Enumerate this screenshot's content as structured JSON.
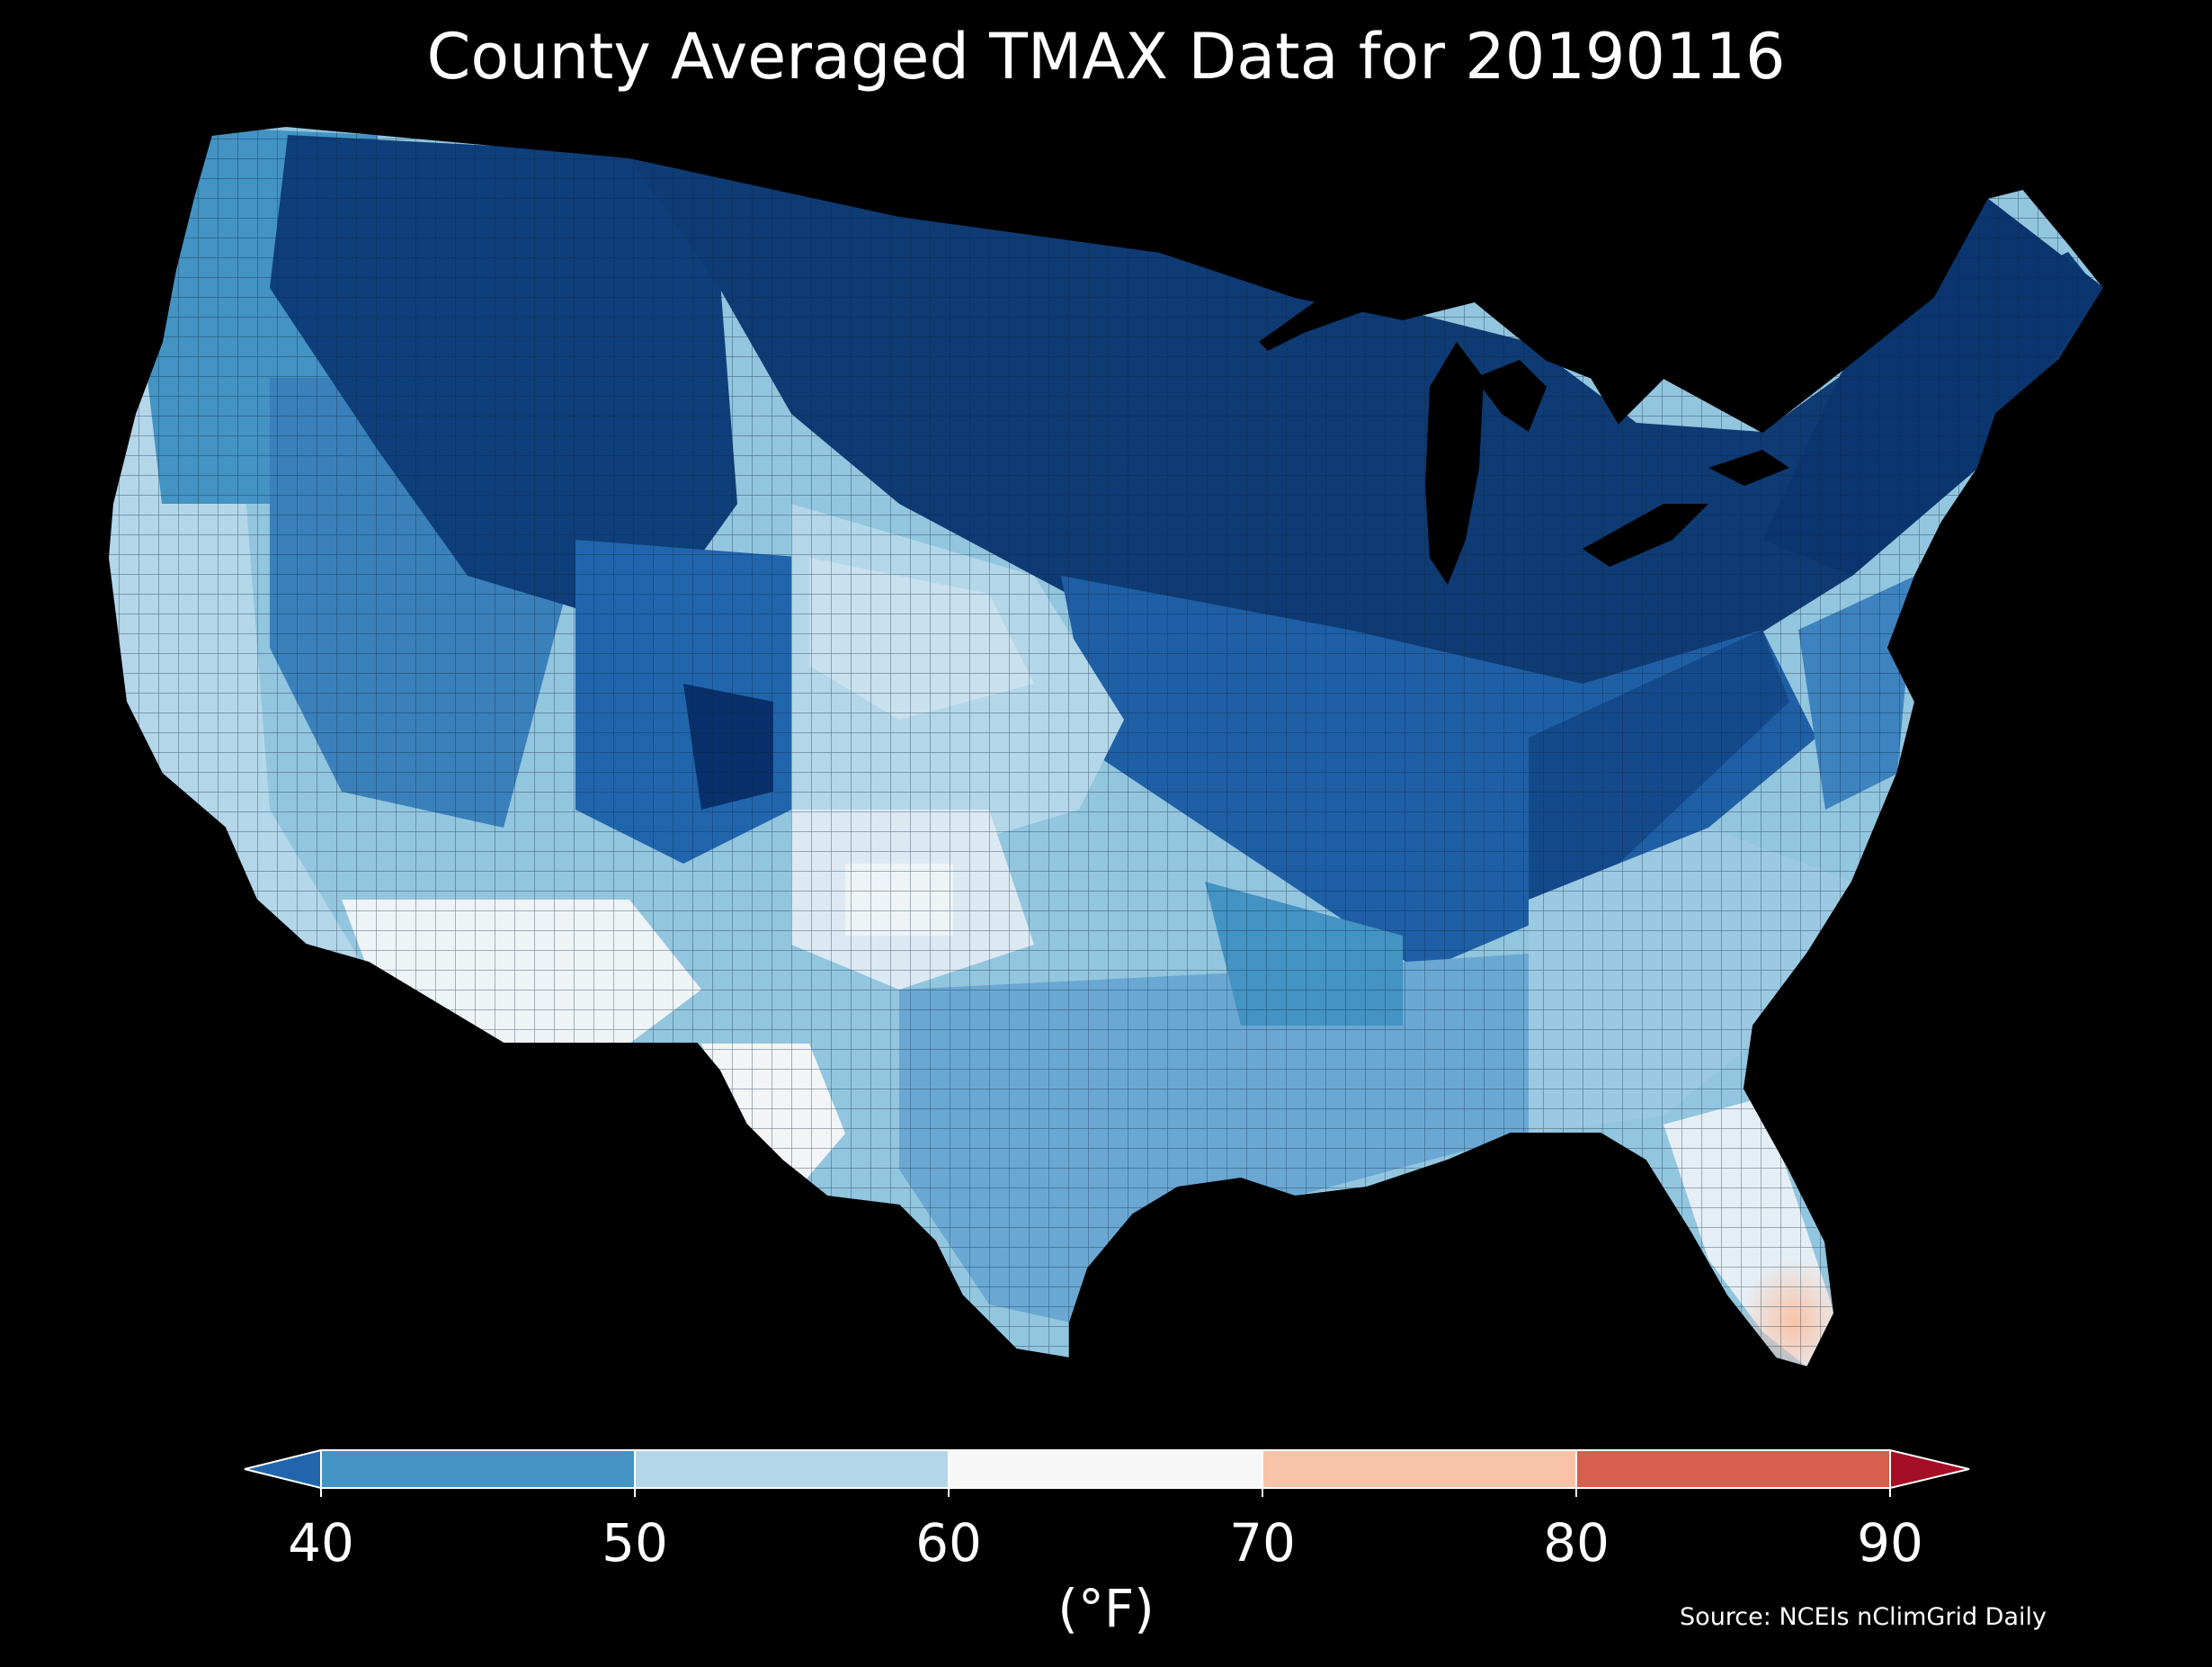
{
  "title": "County Averaged TMAX Data for 20190116",
  "colorbar": {
    "unit_label": "(°F)",
    "ticks": [
      "40",
      "50",
      "60",
      "70",
      "80",
      "90"
    ],
    "bins": [
      {
        "from": 40,
        "to": 50,
        "color": "#4393c3"
      },
      {
        "from": 50,
        "to": 60,
        "color": "#b4d6e9"
      },
      {
        "from": 60,
        "to": 70,
        "color": "#f7f7f7"
      },
      {
        "from": 70,
        "to": 80,
        "color": "#f9c3a8"
      },
      {
        "from": 80,
        "to": 90,
        "color": "#d6604d"
      }
    ],
    "under_color": "#2166ac",
    "over_color": "#a50f26"
  },
  "source": "Source: NCEIs nClimGrid Daily",
  "palette": {
    "background": "#000000",
    "very_cold": "#08306b",
    "cold": "#2166ac",
    "cool": "#4393c3",
    "mild": "#92c5de",
    "warm_neutral": "#f7f7f7",
    "warm": "#f9c3a8"
  }
}
